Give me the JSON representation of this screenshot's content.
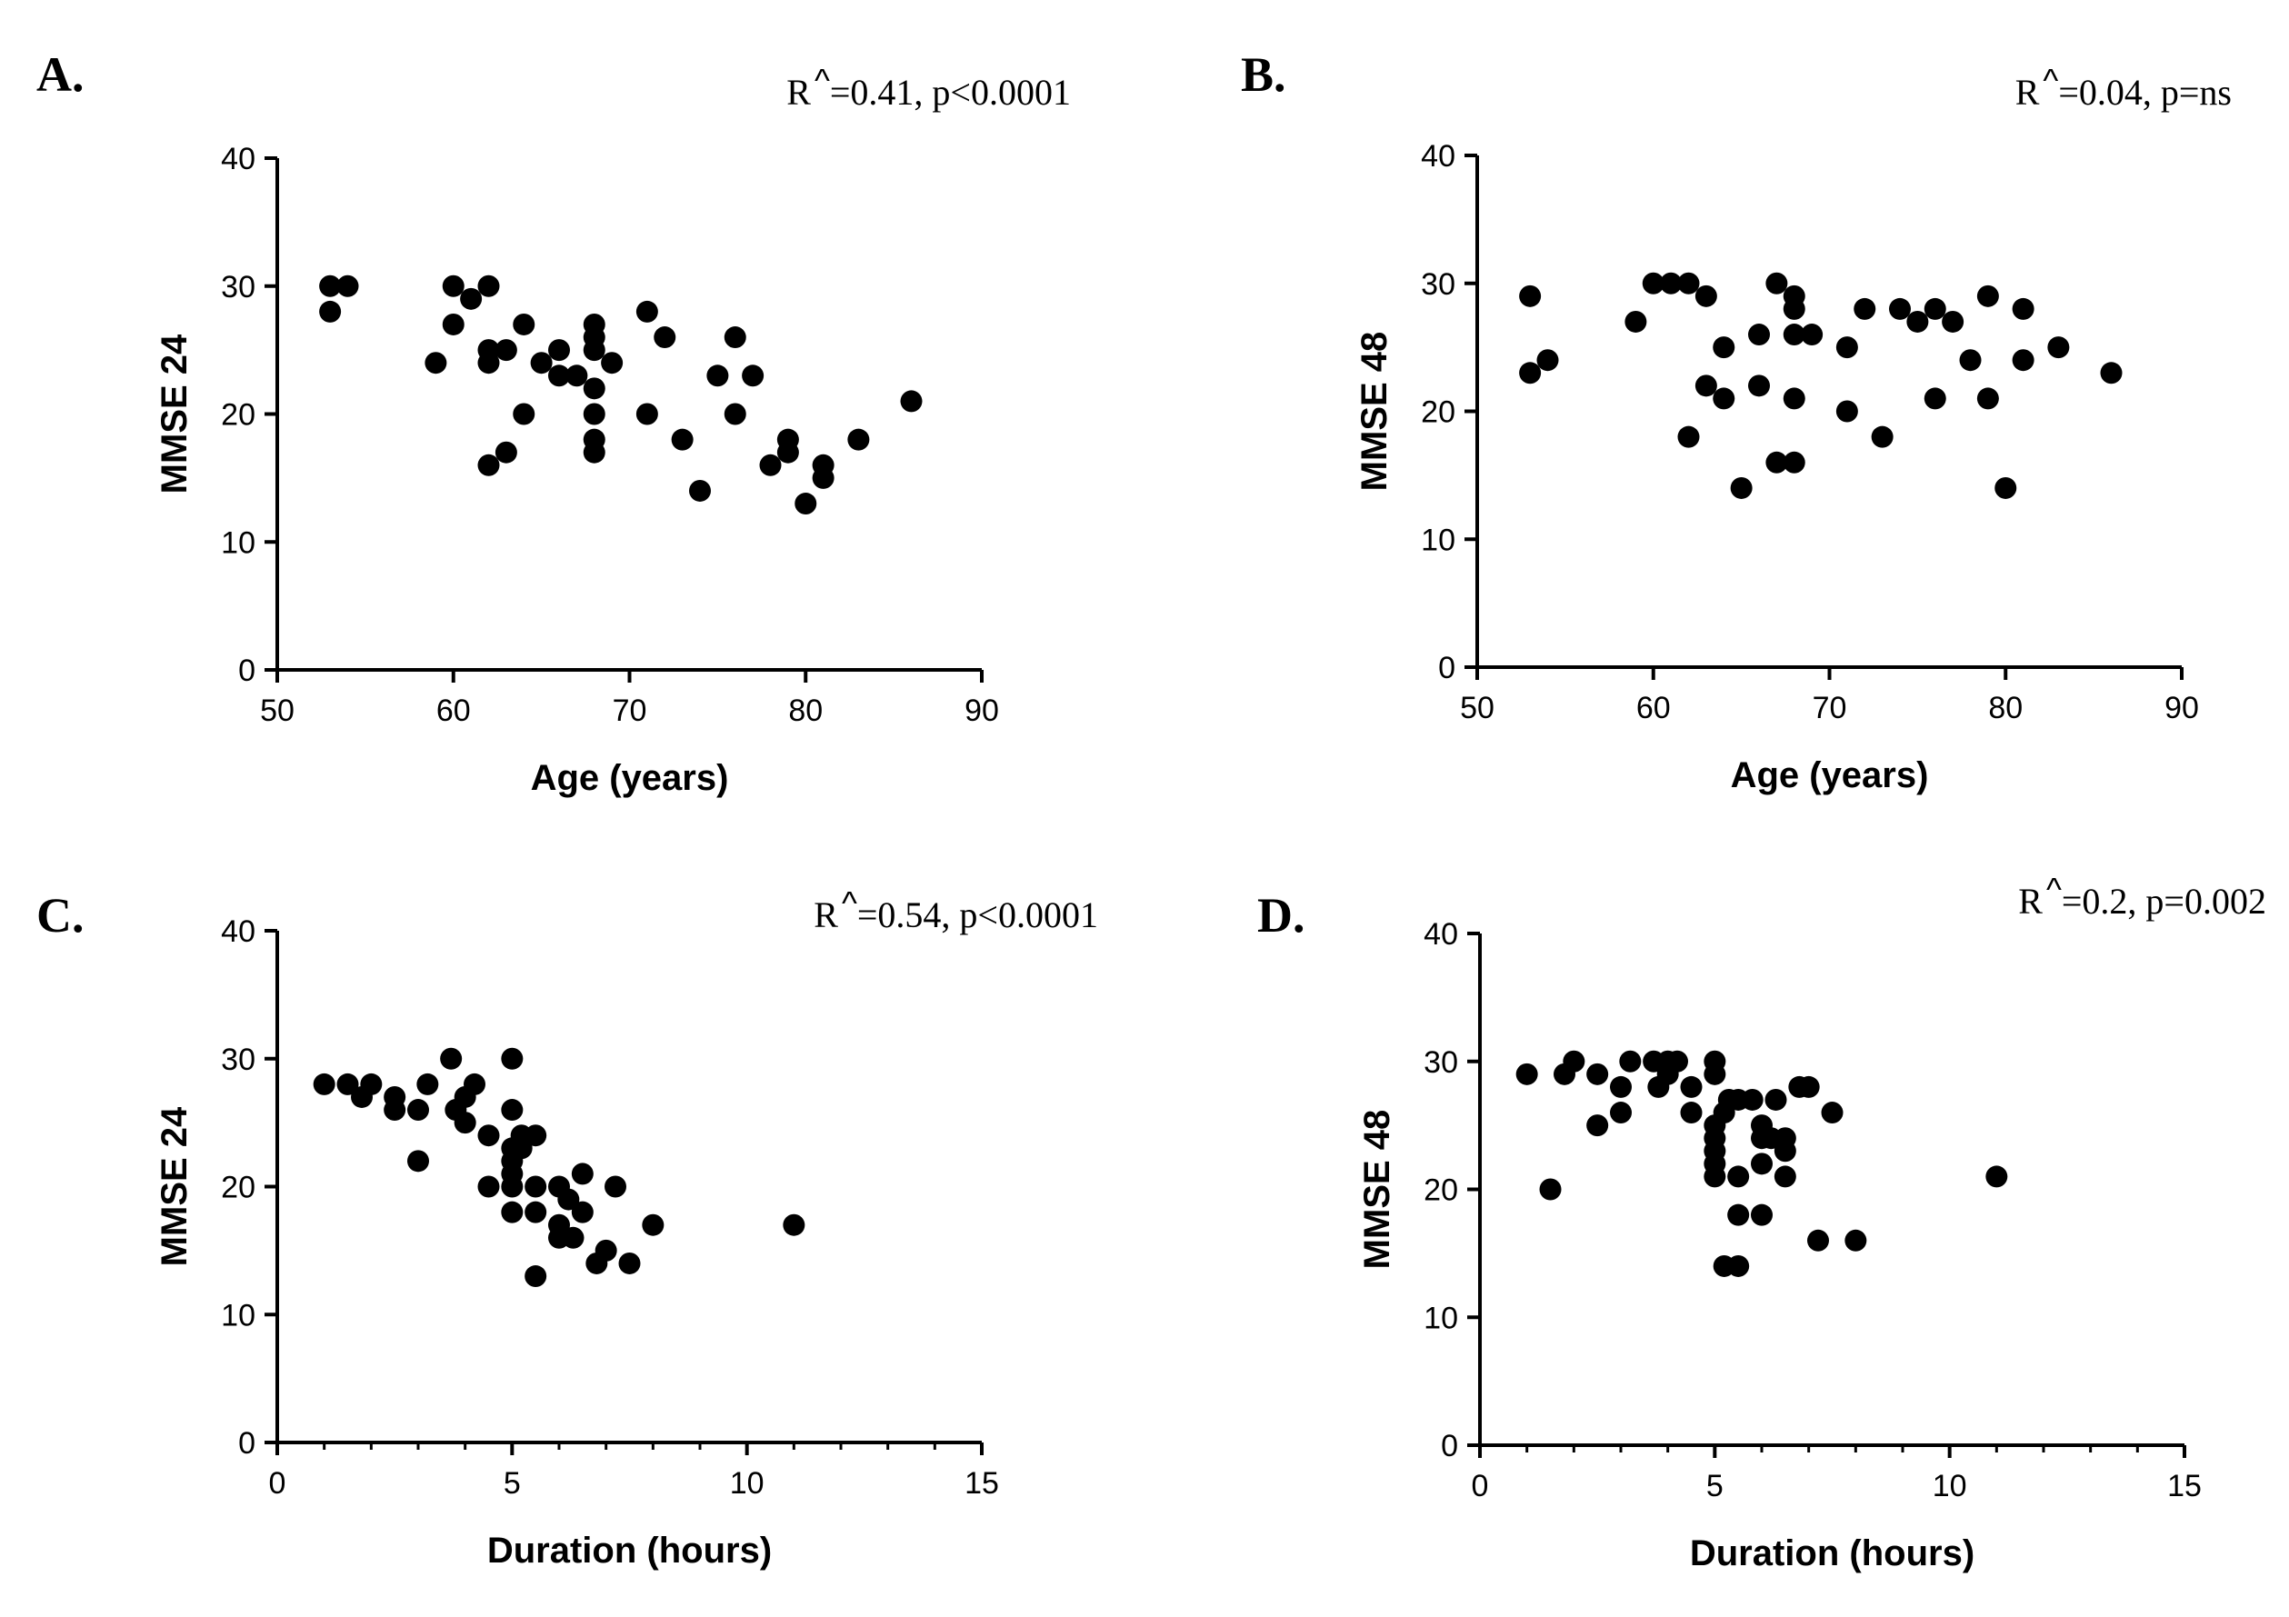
{
  "chart_data": [
    {
      "type": "scatter",
      "panel": "A.",
      "stat": {
        "r": "R",
        "caret": "^",
        "rest": "=0.41, p<0.0001"
      },
      "xlabel": "Age (years)",
      "ylabel": "MMSE 24",
      "xlim": [
        50,
        90
      ],
      "ylim": [
        0,
        40
      ],
      "xticks": [
        50,
        60,
        70,
        80,
        90
      ],
      "yticks": [
        0,
        10,
        20,
        30,
        40
      ],
      "xminor": [],
      "points": [
        [
          53,
          30
        ],
        [
          53,
          28
        ],
        [
          54,
          30
        ],
        [
          59,
          24
        ],
        [
          60,
          30
        ],
        [
          60,
          27
        ],
        [
          61,
          29
        ],
        [
          62,
          30
        ],
        [
          62,
          25
        ],
        [
          62,
          24
        ],
        [
          62,
          16
        ],
        [
          63,
          25
        ],
        [
          63,
          17
        ],
        [
          64,
          27
        ],
        [
          64,
          20
        ],
        [
          65,
          24
        ],
        [
          66,
          25
        ],
        [
          66,
          23
        ],
        [
          67,
          23
        ],
        [
          68,
          27
        ],
        [
          68,
          26
        ],
        [
          68,
          25
        ],
        [
          68,
          22
        ],
        [
          68,
          20
        ],
        [
          68,
          18
        ],
        [
          68,
          17
        ],
        [
          69,
          24
        ],
        [
          71,
          28
        ],
        [
          71,
          20
        ],
        [
          72,
          26
        ],
        [
          73,
          18
        ],
        [
          74,
          14
        ],
        [
          75,
          23
        ],
        [
          76,
          26
        ],
        [
          76,
          20
        ],
        [
          77,
          23
        ],
        [
          78,
          16
        ],
        [
          79,
          18
        ],
        [
          79,
          17
        ],
        [
          80,
          13
        ],
        [
          81,
          16
        ],
        [
          81,
          15
        ],
        [
          83,
          18
        ],
        [
          86,
          21
        ]
      ]
    },
    {
      "type": "scatter",
      "panel": "B.",
      "stat": {
        "r": "R",
        "caret": "^",
        "rest": "=0.04, p=ns"
      },
      "xlabel": "Age (years)",
      "ylabel": "MMSE 48",
      "xlim": [
        50,
        90
      ],
      "ylim": [
        0,
        40
      ],
      "xticks": [
        50,
        60,
        70,
        80,
        90
      ],
      "yticks": [
        0,
        10,
        20,
        30,
        40
      ],
      "xminor": [],
      "points": [
        [
          53,
          29
        ],
        [
          53,
          23
        ],
        [
          54,
          24
        ],
        [
          59,
          27
        ],
        [
          60,
          30
        ],
        [
          61,
          30
        ],
        [
          62,
          30
        ],
        [
          62,
          18
        ],
        [
          63,
          29
        ],
        [
          63,
          22
        ],
        [
          64,
          25
        ],
        [
          64,
          21
        ],
        [
          65,
          14
        ],
        [
          66,
          26
        ],
        [
          66,
          22
        ],
        [
          67,
          30
        ],
        [
          67,
          16
        ],
        [
          68,
          29
        ],
        [
          68,
          28
        ],
        [
          68,
          26
        ],
        [
          68,
          21
        ],
        [
          68,
          16
        ],
        [
          69,
          26
        ],
        [
          71,
          25
        ],
        [
          71,
          20
        ],
        [
          72,
          28
        ],
        [
          73,
          18
        ],
        [
          74,
          28
        ],
        [
          75,
          27
        ],
        [
          76,
          28
        ],
        [
          76,
          21
        ],
        [
          77,
          27
        ],
        [
          78,
          24
        ],
        [
          79,
          29
        ],
        [
          79,
          21
        ],
        [
          80,
          14
        ],
        [
          81,
          28
        ],
        [
          81,
          24
        ],
        [
          83,
          25
        ],
        [
          86,
          23
        ]
      ]
    },
    {
      "type": "scatter",
      "panel": "C.",
      "stat": {
        "r": "R",
        "caret": "^",
        "rest": "=0.54, p<0.0001"
      },
      "xlabel": "Duration (hours)",
      "ylabel": "MMSE 24",
      "xlim": [
        0,
        15
      ],
      "ylim": [
        0,
        40
      ],
      "xticks": [
        0,
        5,
        10,
        15
      ],
      "yticks": [
        0,
        10,
        20,
        30,
        40
      ],
      "xminor": [
        1,
        2,
        3,
        4,
        6,
        7,
        8,
        9,
        11,
        12,
        13,
        14
      ],
      "points": [
        [
          1,
          28
        ],
        [
          1.5,
          28
        ],
        [
          1.8,
          27
        ],
        [
          2,
          28
        ],
        [
          2.5,
          27
        ],
        [
          2.5,
          26
        ],
        [
          3,
          26
        ],
        [
          3,
          22
        ],
        [
          3.2,
          28
        ],
        [
          3.7,
          30
        ],
        [
          3.8,
          26
        ],
        [
          4,
          27
        ],
        [
          4,
          25
        ],
        [
          4.2,
          28
        ],
        [
          4.5,
          24
        ],
        [
          4.5,
          20
        ],
        [
          5,
          30
        ],
        [
          5,
          26
        ],
        [
          5,
          23
        ],
        [
          5,
          22
        ],
        [
          5,
          21
        ],
        [
          5,
          20
        ],
        [
          5,
          18
        ],
        [
          5.2,
          24
        ],
        [
          5.2,
          23
        ],
        [
          5.5,
          24
        ],
        [
          5.5,
          20
        ],
        [
          5.5,
          18
        ],
        [
          5.5,
          13
        ],
        [
          6,
          20
        ],
        [
          6,
          17
        ],
        [
          6,
          16
        ],
        [
          6.2,
          19
        ],
        [
          6.3,
          16
        ],
        [
          6.5,
          21
        ],
        [
          6.5,
          18
        ],
        [
          6.8,
          14
        ],
        [
          7,
          15
        ],
        [
          7.2,
          20
        ],
        [
          7.5,
          14
        ],
        [
          8,
          17
        ],
        [
          11,
          17
        ]
      ]
    },
    {
      "type": "scatter",
      "panel": "D.",
      "stat": {
        "r": "R",
        "caret": "^",
        "rest": "=0.2, p=0.002"
      },
      "xlabel": "Duration (hours)",
      "ylabel": "MMSE 48",
      "xlim": [
        0,
        15
      ],
      "ylim": [
        0,
        40
      ],
      "xticks": [
        0,
        5,
        10,
        15
      ],
      "yticks": [
        0,
        10,
        20,
        30,
        40
      ],
      "xminor": [
        1,
        2,
        3,
        4,
        6,
        7,
        8,
        9,
        11,
        12,
        13,
        14
      ],
      "points": [
        [
          1,
          29
        ],
        [
          1.5,
          20
        ],
        [
          1.8,
          29
        ],
        [
          2,
          30
        ],
        [
          2.5,
          29
        ],
        [
          2.5,
          25
        ],
        [
          3,
          28
        ],
        [
          3,
          26
        ],
        [
          3.2,
          30
        ],
        [
          3.7,
          30
        ],
        [
          3.8,
          28
        ],
        [
          4,
          29
        ],
        [
          4,
          30
        ],
        [
          4.2,
          30
        ],
        [
          4.5,
          28
        ],
        [
          4.5,
          26
        ],
        [
          5,
          30
        ],
        [
          5,
          29
        ],
        [
          5,
          25
        ],
        [
          5,
          24
        ],
        [
          5,
          23
        ],
        [
          5,
          22
        ],
        [
          5,
          21
        ],
        [
          5.2,
          26
        ],
        [
          5.2,
          14
        ],
        [
          5.3,
          27
        ],
        [
          5.5,
          27
        ],
        [
          5.5,
          21
        ],
        [
          5.5,
          18
        ],
        [
          5.5,
          14
        ],
        [
          5.8,
          27
        ],
        [
          6,
          25
        ],
        [
          6,
          24
        ],
        [
          6,
          22
        ],
        [
          6,
          18
        ],
        [
          6.2,
          24
        ],
        [
          6.3,
          27
        ],
        [
          6.5,
          24
        ],
        [
          6.5,
          23
        ],
        [
          6.5,
          21
        ],
        [
          6.8,
          28
        ],
        [
          7,
          28
        ],
        [
          7.2,
          16
        ],
        [
          7.5,
          26
        ],
        [
          8,
          16
        ],
        [
          11,
          21
        ]
      ]
    }
  ]
}
